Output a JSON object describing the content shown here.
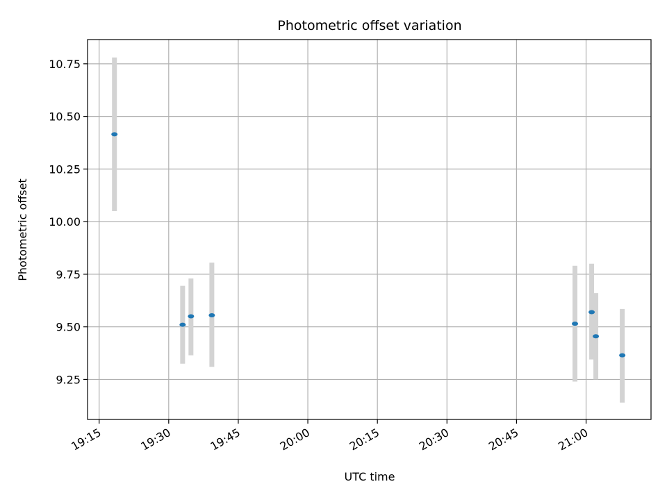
{
  "chart_data": {
    "type": "scatter",
    "title": "Photometric offset variation",
    "xlabel": "UTC time",
    "ylabel": "Photometric offset",
    "x_ticks": [
      "19:15",
      "19:30",
      "19:45",
      "20:00",
      "20:15",
      "20:30",
      "20:45",
      "21:00"
    ],
    "y_ticks": [
      "9.25",
      "9.50",
      "9.75",
      "10.00",
      "10.25",
      "10.50",
      "10.75"
    ],
    "xlim": [
      "19:12.5",
      "21:14.0"
    ],
    "ylim": [
      9.06,
      10.865
    ],
    "grid": true,
    "legend": "none",
    "colors": {
      "point": "#1f77b4",
      "errorbar": "#d3d3d3",
      "grid": "#b0b0b0"
    },
    "points": [
      {
        "x": "19:18.3",
        "y": 10.415,
        "err_low": 10.05,
        "err_high": 10.78
      },
      {
        "x": "19:33.0",
        "y": 9.51,
        "err_low": 9.325,
        "err_high": 9.695
      },
      {
        "x": "19:34.8",
        "y": 9.55,
        "err_low": 9.365,
        "err_high": 9.73
      },
      {
        "x": "19:39.3",
        "y": 9.555,
        "err_low": 9.31,
        "err_high": 9.805
      },
      {
        "x": "20:57.6",
        "y": 9.515,
        "err_low": 9.24,
        "err_high": 9.79
      },
      {
        "x": "21:01.2",
        "y": 9.57,
        "err_low": 9.345,
        "err_high": 9.8
      },
      {
        "x": "21:02.1",
        "y": 9.455,
        "err_low": 9.25,
        "err_high": 9.66
      },
      {
        "x": "21:07.8",
        "y": 9.365,
        "err_low": 9.14,
        "err_high": 9.585
      }
    ]
  }
}
